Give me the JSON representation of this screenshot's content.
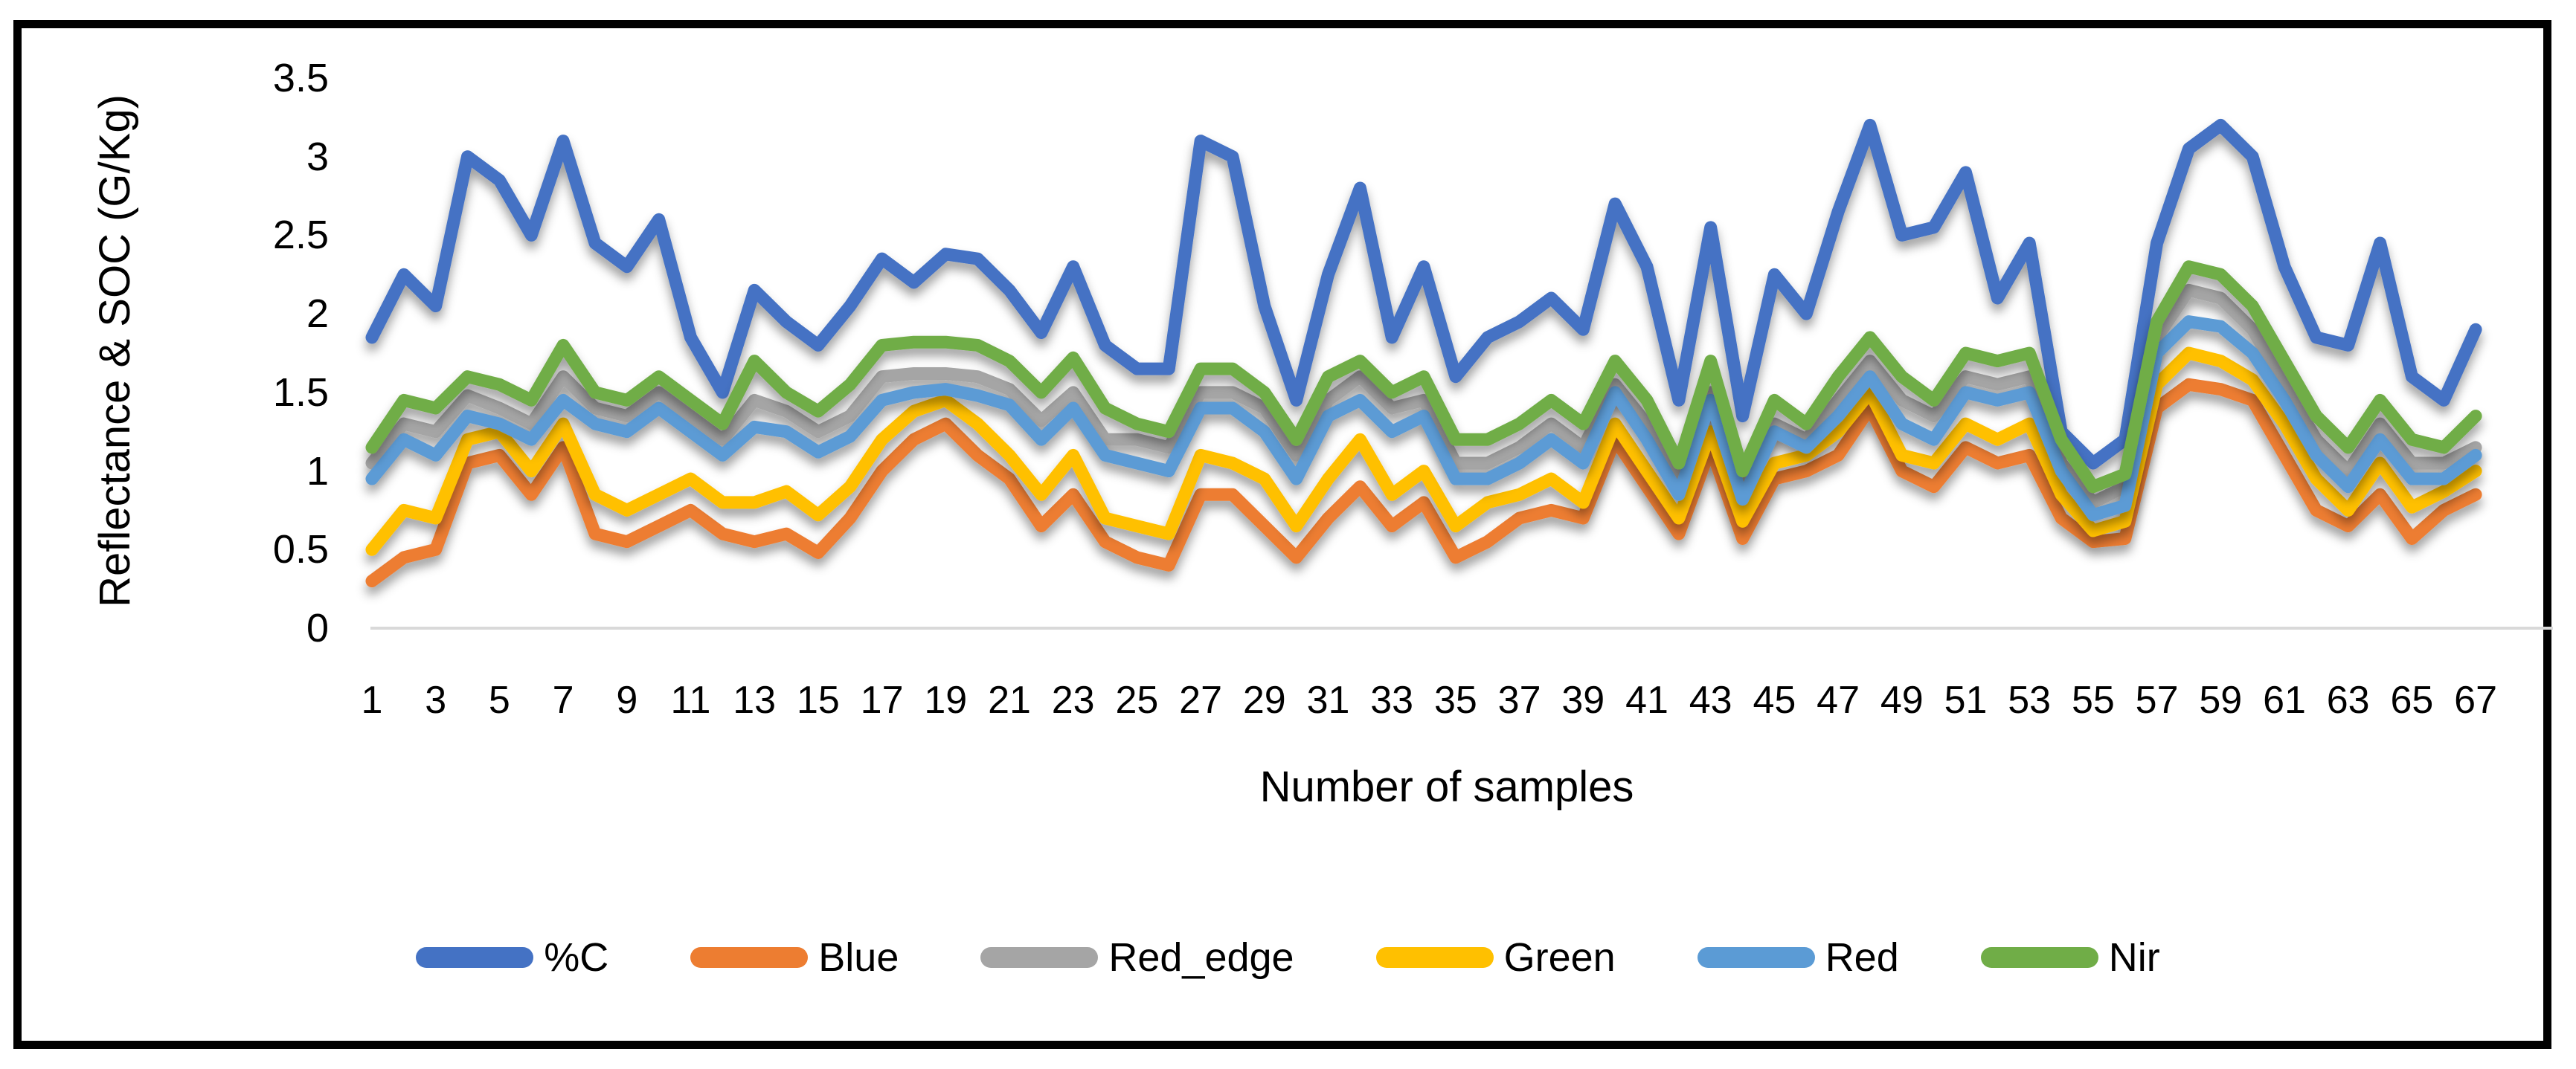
{
  "chart_data": {
    "type": "line",
    "title": "",
    "xlabel": "Number of samples",
    "ylabel": "Reflectance & SOC (G/Kg)",
    "ylim": [
      0,
      3.5
    ],
    "y_ticks": [
      0,
      0.5,
      1,
      1.5,
      2,
      2.5,
      3,
      3.5
    ],
    "y_tick_labels": [
      "0",
      "0.5",
      "1",
      "1.5",
      "2",
      "2.5",
      "3",
      "3.5"
    ],
    "x_tick_labels": [
      "1",
      "3",
      "5",
      "7",
      "9",
      "11",
      "13",
      "15",
      "17",
      "19",
      "21",
      "23",
      "25",
      "27",
      "29",
      "31",
      "33",
      "35",
      "37",
      "39",
      "41",
      "43",
      "45",
      "47",
      "49",
      "51",
      "53",
      "55",
      "57",
      "59",
      "61",
      "63",
      "65",
      "67"
    ],
    "grid": "baseline-only",
    "baseline_color": "#d9d9d9",
    "legend_position": "bottom",
    "text_color": "#000000",
    "x": [
      1,
      2,
      3,
      4,
      5,
      6,
      7,
      8,
      9,
      10,
      11,
      12,
      13,
      14,
      15,
      16,
      17,
      18,
      19,
      20,
      21,
      22,
      23,
      24,
      25,
      26,
      27,
      28,
      29,
      30,
      31,
      32,
      33,
      34,
      35,
      36,
      37,
      38,
      39,
      40,
      41,
      42,
      43,
      44,
      45,
      46,
      47,
      48,
      49,
      50,
      51,
      52,
      53,
      54,
      55,
      56,
      57,
      58,
      59,
      60,
      61,
      62,
      63,
      64,
      65,
      66,
      67
    ],
    "series": [
      {
        "name": "%C",
        "color": "#4472C4",
        "values": [
          1.85,
          2.25,
          2.05,
          3.0,
          2.85,
          2.5,
          3.1,
          2.45,
          2.3,
          2.6,
          1.85,
          1.5,
          2.15,
          1.95,
          1.8,
          2.05,
          2.35,
          2.2,
          2.38,
          2.35,
          2.15,
          1.88,
          2.3,
          1.8,
          1.65,
          1.65,
          3.1,
          3.0,
          2.05,
          1.45,
          2.25,
          2.8,
          1.85,
          2.3,
          1.6,
          1.85,
          1.95,
          2.1,
          1.9,
          2.7,
          2.3,
          1.45,
          2.55,
          1.35,
          2.25,
          2.0,
          2.65,
          3.2,
          2.5,
          2.55,
          2.9,
          2.1,
          2.45,
          1.25,
          1.05,
          1.2,
          2.45,
          3.05,
          3.2,
          3.0,
          2.3,
          1.85,
          1.8,
          2.45,
          1.6,
          1.45,
          1.9
        ]
      },
      {
        "name": "Blue",
        "color": "#ED7D31",
        "values": [
          0.3,
          0.45,
          0.5,
          1.05,
          1.1,
          0.85,
          1.15,
          0.6,
          0.55,
          0.65,
          0.75,
          0.6,
          0.55,
          0.6,
          0.48,
          0.7,
          1.0,
          1.2,
          1.3,
          1.1,
          0.95,
          0.65,
          0.85,
          0.55,
          0.45,
          0.4,
          0.85,
          0.85,
          0.65,
          0.45,
          0.7,
          0.9,
          0.65,
          0.8,
          0.45,
          0.55,
          0.7,
          0.75,
          0.7,
          1.2,
          0.9,
          0.6,
          1.15,
          0.57,
          0.95,
          1.0,
          1.1,
          1.4,
          1.0,
          0.9,
          1.15,
          1.05,
          1.1,
          0.7,
          0.55,
          0.57,
          1.4,
          1.55,
          1.52,
          1.45,
          1.1,
          0.75,
          0.65,
          0.85,
          0.57,
          0.75,
          0.85
        ]
      },
      {
        "name": "Red_edge",
        "color": "#A5A5A5",
        "values": [
          1.05,
          1.3,
          1.25,
          1.48,
          1.4,
          1.3,
          1.6,
          1.4,
          1.35,
          1.5,
          1.35,
          1.2,
          1.45,
          1.38,
          1.25,
          1.35,
          1.6,
          1.62,
          1.62,
          1.6,
          1.52,
          1.32,
          1.5,
          1.2,
          1.2,
          1.15,
          1.5,
          1.5,
          1.4,
          1.1,
          1.45,
          1.6,
          1.4,
          1.45,
          1.05,
          1.05,
          1.15,
          1.3,
          1.15,
          1.55,
          1.3,
          0.95,
          1.5,
          0.9,
          1.3,
          1.2,
          1.45,
          1.7,
          1.45,
          1.35,
          1.6,
          1.55,
          1.6,
          1.05,
          0.8,
          0.9,
          1.85,
          2.15,
          2.1,
          1.9,
          1.55,
          1.2,
          1.0,
          1.3,
          1.05,
          1.05,
          1.15
        ]
      },
      {
        "name": "Green",
        "color": "#FFC000",
        "values": [
          0.5,
          0.75,
          0.7,
          1.2,
          1.25,
          1.0,
          1.3,
          0.85,
          0.75,
          0.85,
          0.95,
          0.8,
          0.8,
          0.87,
          0.72,
          0.9,
          1.2,
          1.38,
          1.45,
          1.3,
          1.1,
          0.85,
          1.1,
          0.7,
          0.65,
          0.6,
          1.1,
          1.05,
          0.95,
          0.65,
          0.95,
          1.2,
          0.85,
          1.0,
          0.65,
          0.8,
          0.85,
          0.95,
          0.8,
          1.3,
          1.0,
          0.7,
          1.25,
          0.68,
          1.05,
          1.1,
          1.25,
          1.5,
          1.1,
          1.05,
          1.3,
          1.2,
          1.3,
          0.85,
          0.62,
          0.68,
          1.55,
          1.75,
          1.7,
          1.58,
          1.3,
          0.95,
          0.75,
          1.05,
          0.77,
          0.87,
          1.0
        ]
      },
      {
        "name": "Red",
        "color": "#5B9BD5",
        "values": [
          0.95,
          1.2,
          1.1,
          1.35,
          1.3,
          1.2,
          1.45,
          1.3,
          1.25,
          1.4,
          1.25,
          1.1,
          1.28,
          1.25,
          1.12,
          1.22,
          1.45,
          1.5,
          1.52,
          1.48,
          1.42,
          1.2,
          1.4,
          1.1,
          1.05,
          1.0,
          1.4,
          1.4,
          1.25,
          0.95,
          1.35,
          1.45,
          1.25,
          1.35,
          0.95,
          0.95,
          1.05,
          1.2,
          1.05,
          1.5,
          1.2,
          0.85,
          1.45,
          0.82,
          1.25,
          1.15,
          1.35,
          1.6,
          1.3,
          1.2,
          1.5,
          1.45,
          1.5,
          1.0,
          0.72,
          0.78,
          1.75,
          1.95,
          1.92,
          1.75,
          1.45,
          1.1,
          0.9,
          1.2,
          0.95,
          0.95,
          1.1
        ]
      },
      {
        "name": "Nir",
        "color": "#70AD47",
        "values": [
          1.15,
          1.45,
          1.4,
          1.6,
          1.55,
          1.45,
          1.8,
          1.5,
          1.45,
          1.6,
          1.45,
          1.3,
          1.7,
          1.5,
          1.38,
          1.55,
          1.8,
          1.82,
          1.82,
          1.8,
          1.7,
          1.5,
          1.72,
          1.4,
          1.3,
          1.25,
          1.65,
          1.65,
          1.5,
          1.2,
          1.6,
          1.7,
          1.5,
          1.6,
          1.2,
          1.2,
          1.3,
          1.45,
          1.3,
          1.7,
          1.45,
          1.05,
          1.7,
          1.0,
          1.45,
          1.3,
          1.6,
          1.85,
          1.6,
          1.45,
          1.75,
          1.7,
          1.75,
          1.2,
          0.9,
          0.98,
          1.95,
          2.3,
          2.25,
          2.05,
          1.7,
          1.35,
          1.15,
          1.45,
          1.2,
          1.15,
          1.35
        ]
      }
    ],
    "style": {
      "line_width": 17,
      "drop_shadow": true,
      "frame_border_color": "#000000"
    }
  }
}
